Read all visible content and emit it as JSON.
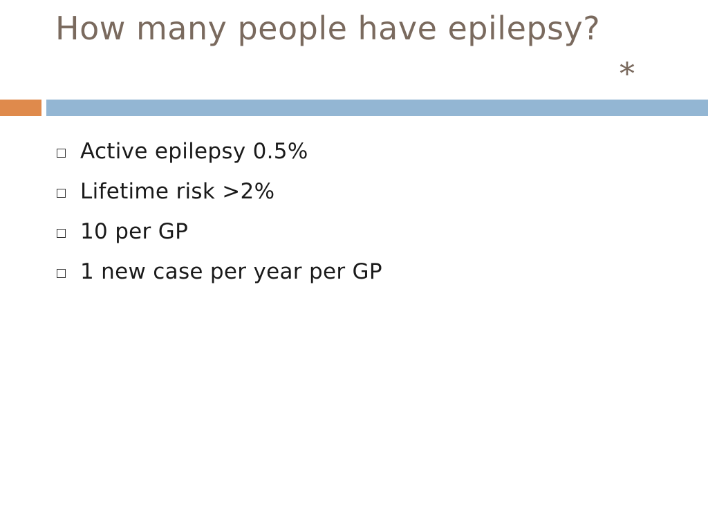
{
  "slide": {
    "title": "How many people have epilepsy?",
    "title_marker": "*",
    "colors": {
      "title": "#7a6a5e",
      "accent_bar": "#df8a4c",
      "main_bar": "#93b6d3",
      "body_text": "#1a1a1a"
    },
    "bullets": [
      {
        "icon": "hollow-square-bullet-icon",
        "text": "Active epilepsy 0.5%"
      },
      {
        "icon": "hollow-square-bullet-icon",
        "text": "Lifetime risk >2%"
      },
      {
        "icon": "hollow-square-bullet-icon",
        "text": "10 per GP"
      },
      {
        "icon": "hollow-square-bullet-icon",
        "text": "1 new case per year per GP"
      }
    ]
  }
}
